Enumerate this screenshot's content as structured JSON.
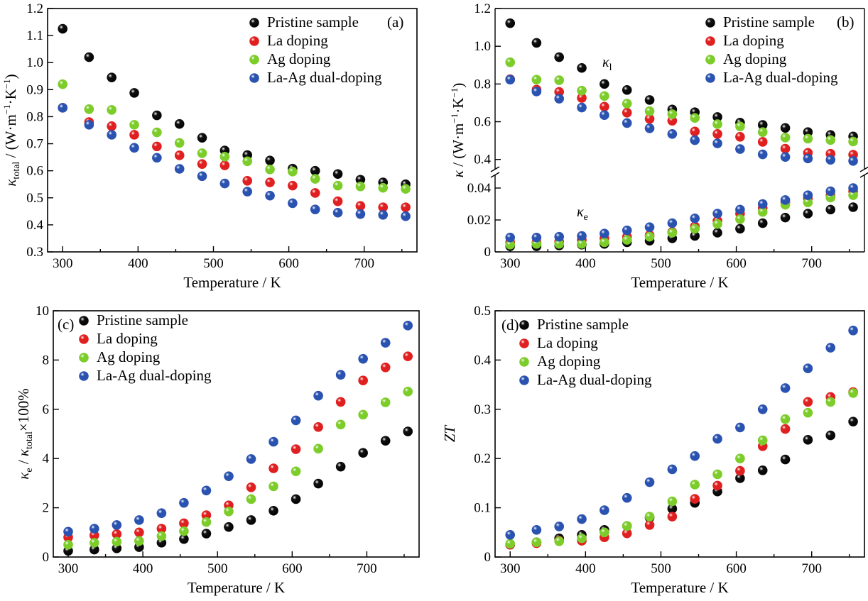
{
  "figure": {
    "legend": [
      "Pristine sample",
      "La doping",
      "Ag doping",
      "La-Ag dual-doping"
    ],
    "colors": {
      "Pristine sample": "#111111",
      "La doping": "#e02020",
      "Ag doping": "#7ccc2a",
      "La-Ag dual-doping": "#2a52b0"
    }
  },
  "chart_data": [
    {
      "type": "scatter",
      "panel_label": "(a)",
      "xlabel": "Temperature / K",
      "ylabel": "κtotal / (W·m⁻¹·K⁻¹)",
      "ylabel_parts": {
        "sym": "κ",
        "sub": "total",
        "unit": " / (W·m",
        "e1": "−1",
        "mid": "·K",
        "e2": "−1",
        "end": ")"
      },
      "xlim": [
        280,
        770
      ],
      "ylim": [
        0.3,
        1.2
      ],
      "xticks": [
        300,
        400,
        500,
        600,
        700
      ],
      "yticks": [
        0.3,
        0.4,
        0.5,
        0.6,
        0.7,
        0.8,
        0.9,
        1.0,
        1.1,
        1.2
      ],
      "ytick_labels": [
        "0.3",
        "0.4",
        "0.5",
        "0.6",
        "0.7",
        "0.8",
        "0.9",
        "1.0",
        "1.1",
        "1.2"
      ],
      "legend_position": "top-right",
      "x": [
        300,
        335,
        365,
        395,
        425,
        455,
        485,
        515,
        545,
        575,
        605,
        635,
        665,
        695,
        725,
        755
      ],
      "series": [
        {
          "name": "Pristine sample",
          "values": [
            1.125,
            1.02,
            0.945,
            0.888,
            0.805,
            0.773,
            0.722,
            0.675,
            0.658,
            0.638,
            0.608,
            0.6,
            0.588,
            0.567,
            0.557,
            0.55
          ]
        },
        {
          "name": "La doping",
          "values": [
            0.833,
            0.78,
            0.765,
            0.733,
            0.69,
            0.657,
            0.625,
            0.62,
            0.563,
            0.557,
            0.545,
            0.518,
            0.487,
            0.47,
            0.465,
            0.465
          ]
        },
        {
          "name": "Ag doping",
          "values": [
            0.92,
            0.828,
            0.825,
            0.77,
            0.742,
            0.703,
            0.665,
            0.652,
            0.635,
            0.605,
            0.597,
            0.57,
            0.545,
            0.542,
            0.537,
            0.533
          ]
        },
        {
          "name": "La-Ag dual-doping",
          "values": [
            0.833,
            0.77,
            0.733,
            0.685,
            0.648,
            0.607,
            0.58,
            0.553,
            0.523,
            0.508,
            0.48,
            0.457,
            0.445,
            0.44,
            0.437,
            0.432
          ]
        }
      ]
    },
    {
      "type": "scatter",
      "panel_label": "(b)",
      "xlabel": "Temperature / K",
      "ylabel": "κ / (W·m⁻¹·K⁻¹)",
      "ylabel_parts": {
        "sym": "κ",
        "sub": "",
        "unit": " / (W·m",
        "e1": "−1",
        "mid": "·K",
        "e2": "−1",
        "end": ")"
      },
      "xlim": [
        280,
        770
      ],
      "broken_axis": true,
      "upper_ylim": [
        0.35,
        1.2
      ],
      "upper_yticks": [
        0.4,
        0.6,
        0.8,
        1.0,
        1.2
      ],
      "upper_ytick_labels": [
        "0.4",
        "0.6",
        "0.8",
        "1.0",
        "1.2"
      ],
      "lower_ylim": [
        0,
        0.048
      ],
      "lower_yticks": [
        0,
        0.02,
        0.04
      ],
      "lower_ytick_labels": [
        "0",
        "0.02",
        "0.04"
      ],
      "xticks": [
        300,
        400,
        500,
        600,
        700
      ],
      "legend_position": "top-right",
      "annotations": [
        {
          "sym": "κ",
          "sub": "l",
          "x": 640,
          "y": 0.8,
          "axis": "upper"
        },
        {
          "sym": "κ",
          "sub": "e",
          "x": 610,
          "y": 0.022,
          "axis": "lower"
        }
      ],
      "x": [
        300,
        335,
        365,
        395,
        425,
        455,
        485,
        515,
        545,
        575,
        605,
        635,
        665,
        695,
        725,
        755
      ],
      "series_lattice": [
        {
          "name": "Pristine sample",
          "values": [
            1.122,
            1.018,
            0.942,
            0.885,
            0.8,
            0.768,
            0.715,
            0.665,
            0.65,
            0.625,
            0.595,
            0.583,
            0.567,
            0.545,
            0.53,
            0.522
          ]
        },
        {
          "name": "La doping",
          "values": [
            0.825,
            0.77,
            0.758,
            0.726,
            0.68,
            0.648,
            0.615,
            0.605,
            0.548,
            0.535,
            0.52,
            0.493,
            0.457,
            0.435,
            0.43,
            0.425
          ]
        },
        {
          "name": "Ag doping",
          "values": [
            0.915,
            0.823,
            0.82,
            0.765,
            0.736,
            0.696,
            0.656,
            0.64,
            0.62,
            0.587,
            0.575,
            0.545,
            0.516,
            0.51,
            0.503,
            0.495
          ]
        },
        {
          "name": "La-Ag dual-doping",
          "values": [
            0.823,
            0.76,
            0.722,
            0.675,
            0.635,
            0.593,
            0.565,
            0.535,
            0.502,
            0.485,
            0.455,
            0.427,
            0.413,
            0.405,
            0.398,
            0.392
          ]
        }
      ],
      "series_electronic": [
        {
          "name": "Pristine sample",
          "values": [
            0.0035,
            0.0035,
            0.004,
            0.0045,
            0.005,
            0.006,
            0.007,
            0.0085,
            0.01,
            0.012,
            0.0145,
            0.018,
            0.0215,
            0.024,
            0.0265,
            0.028
          ]
        },
        {
          "name": "La doping",
          "values": [
            0.006,
            0.006,
            0.0065,
            0.0075,
            0.0085,
            0.0095,
            0.0105,
            0.0125,
            0.016,
            0.0195,
            0.024,
            0.0275,
            0.031,
            0.0335,
            0.0355,
            0.038
          ]
        },
        {
          "name": "Ag doping",
          "values": [
            0.0045,
            0.005,
            0.005,
            0.005,
            0.006,
            0.0075,
            0.0095,
            0.012,
            0.0145,
            0.0175,
            0.0205,
            0.025,
            0.0295,
            0.031,
            0.034,
            0.0355
          ]
        },
        {
          "name": "La-Ag dual-doping",
          "values": [
            0.009,
            0.009,
            0.0095,
            0.01,
            0.0115,
            0.0135,
            0.0155,
            0.018,
            0.021,
            0.024,
            0.0265,
            0.03,
            0.0325,
            0.0355,
            0.038,
            0.04
          ]
        }
      ]
    },
    {
      "type": "scatter",
      "panel_label": "(c)",
      "xlabel": "Temperature / K",
      "ylabel": "κe / κtotal×100%",
      "ylabel_parts": {
        "sym": "κ",
        "sub": "e",
        "mid": " / ",
        "sym2": "κ",
        "sub2": "total",
        "end": "×100%"
      },
      "xlim": [
        280,
        770
      ],
      "ylim": [
        0,
        10
      ],
      "xticks": [
        300,
        400,
        500,
        600,
        700
      ],
      "yticks": [
        0,
        2,
        4,
        6,
        8,
        10
      ],
      "ytick_labels": [
        "0",
        "2",
        "4",
        "6",
        "8",
        "10"
      ],
      "legend_position": "top-left",
      "x": [
        300,
        335,
        365,
        395,
        425,
        455,
        485,
        515,
        545,
        575,
        605,
        635,
        665,
        695,
        725,
        755
      ],
      "series": [
        {
          "name": "Pristine sample",
          "values": [
            0.25,
            0.3,
            0.35,
            0.4,
            0.58,
            0.73,
            0.95,
            1.22,
            1.5,
            1.88,
            2.35,
            2.98,
            3.67,
            4.23,
            4.72,
            5.1
          ]
        },
        {
          "name": "La doping",
          "values": [
            0.8,
            0.88,
            0.93,
            1.0,
            1.15,
            1.37,
            1.7,
            2.1,
            2.83,
            3.6,
            4.38,
            5.28,
            6.3,
            7.17,
            7.7,
            8.15
          ]
        },
        {
          "name": "Ag doping",
          "values": [
            0.5,
            0.58,
            0.62,
            0.65,
            0.85,
            1.05,
            1.42,
            1.85,
            2.35,
            2.87,
            3.48,
            4.4,
            5.38,
            5.78,
            6.28,
            6.72
          ]
        },
        {
          "name": "La-Ag dual-doping",
          "values": [
            1.03,
            1.15,
            1.3,
            1.5,
            1.78,
            2.2,
            2.7,
            3.28,
            3.98,
            4.68,
            5.55,
            6.55,
            7.4,
            8.05,
            8.7,
            9.4
          ]
        }
      ]
    },
    {
      "type": "scatter",
      "panel_label": "(d)",
      "xlabel": "Temperature / K",
      "ylabel": "ZT",
      "xlim": [
        280,
        770
      ],
      "ylim": [
        0,
        0.5
      ],
      "xticks": [
        300,
        400,
        500,
        600,
        700
      ],
      "yticks": [
        0,
        0.1,
        0.2,
        0.3,
        0.4,
        0.5
      ],
      "ytick_labels": [
        "0",
        "0.1",
        "0.2",
        "0.3",
        "0.4",
        "0.5"
      ],
      "legend_position": "top-left",
      "x": [
        300,
        335,
        365,
        395,
        425,
        455,
        485,
        515,
        545,
        575,
        605,
        635,
        665,
        695,
        725,
        755
      ],
      "series": [
        {
          "name": "Pristine sample",
          "values": [
            0.025,
            0.03,
            0.038,
            0.045,
            0.055,
            0.063,
            0.08,
            0.098,
            0.11,
            0.133,
            0.16,
            0.176,
            0.198,
            0.238,
            0.247,
            0.275
          ]
        },
        {
          "name": "La doping",
          "values": [
            0.025,
            0.028,
            0.033,
            0.033,
            0.04,
            0.048,
            0.065,
            0.082,
            0.118,
            0.145,
            0.175,
            0.225,
            0.26,
            0.315,
            0.325,
            0.335
          ]
        },
        {
          "name": "Ag doping",
          "values": [
            0.027,
            0.03,
            0.032,
            0.038,
            0.05,
            0.063,
            0.082,
            0.113,
            0.147,
            0.168,
            0.2,
            0.237,
            0.28,
            0.293,
            0.315,
            0.333
          ]
        },
        {
          "name": "La-Ag dual-doping",
          "values": [
            0.045,
            0.055,
            0.062,
            0.077,
            0.095,
            0.12,
            0.152,
            0.178,
            0.205,
            0.24,
            0.263,
            0.3,
            0.343,
            0.383,
            0.425,
            0.46
          ]
        }
      ]
    }
  ]
}
